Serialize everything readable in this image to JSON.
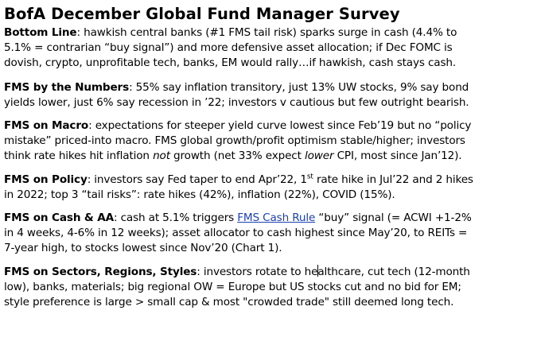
{
  "title": "BofA December Global Fund Manager Survey",
  "sections": [
    {
      "lead": "Bottom Line",
      "lines": [
        ": hawkish central banks (#1 FMS tail risk) sparks surge in cash (4.4% to",
        "5.1% = contrarian “buy signal”) and more defensive asset allocation; if Dec FOMC is",
        "dovish, crypto, unprofitable tech, banks, EM would rally…if hawkish, cash stays cash."
      ]
    },
    {
      "lead": "FMS by the Numbers",
      "lines": [
        ": 55% say inflation transitory, just 13% UW stocks, 9% say bond",
        "yields lower, just 6% say recession in ’22; investors v cautious but few outright bearish."
      ]
    },
    {
      "lead": "FMS on Macro",
      "line1": ": expectations for steeper yield curve lowest since Feb’19 but no “policy",
      "line2": "mistake” priced-into macro. FMS global growth/profit optimism stable/higher; investors",
      "line3_a": "think rate hikes hit inflation ",
      "line3_em": "not",
      "line3_b": " growth (net 33% expect ",
      "line3_em2": "lower",
      "line3_c": " CPI, most since Jan’12)."
    },
    {
      "lead": "FMS on Policy",
      "line1_a": ": investors say Fed taper to end Apr’22, 1",
      "line1_sup": "st",
      "line1_b": " rate hike in Jul’22 and 2 hikes",
      "line2": "in 2022; top 3 “tail risks”: rate hikes (42%), inflation (22%), COVID (15%)."
    },
    {
      "lead": "FMS on Cash & AA",
      "line1_a": ": cash at 5.1% triggers ",
      "line1_link": "FMS Cash Rule",
      "line1_b": " “buy” signal (= ACWI +1-2%",
      "line2": "in 4 weeks, 4-6% in 12 weeks); asset allocator to cash highest since May’20, to REITs =",
      "line3": "7-year high, to stocks lowest since Nov’20 (Chart 1)."
    },
    {
      "lead": "FMS on Sectors, Regions, Styles",
      "line1_a": ": investors rotate to he",
      "line1_b": "althcare, cut tech (12-month",
      "line2": "low), banks, materials; big regional OW = Europe but US stocks cut and no bid for EM;",
      "line3": "style preference is large > small cap & most \"crowded trade\" still deemed long tech."
    }
  ]
}
